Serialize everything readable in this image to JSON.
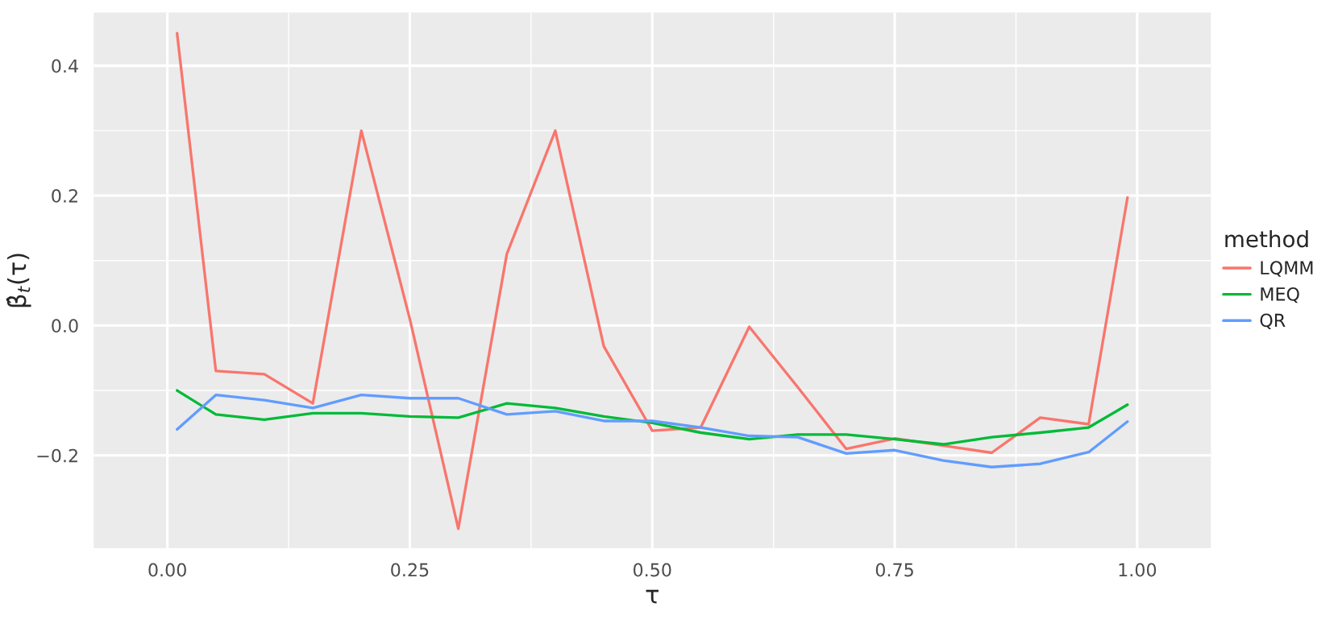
{
  "chart_data": {
    "type": "line",
    "xlabel": "τ",
    "ylabel": "β̂$_{t}$(τ)",
    "legend_title": "method",
    "legend": "right",
    "grid": true,
    "marker": "none",
    "line_style": "solid",
    "x": [
      0.01,
      0.05,
      0.1,
      0.15,
      0.2,
      0.25,
      0.3,
      0.35,
      0.4,
      0.45,
      0.5,
      0.55,
      0.6,
      0.65,
      0.7,
      0.75,
      0.8,
      0.85,
      0.9,
      0.95,
      0.99
    ],
    "xlim": [
      -0.076,
      1.076
    ],
    "ylim": [
      -0.343,
      0.482
    ],
    "xticks": [
      {
        "value": 0,
        "label": "0.00"
      },
      {
        "value": 0.25,
        "label": "0.25"
      },
      {
        "value": 0.5,
        "label": "0.50"
      },
      {
        "value": 0.75,
        "label": "0.75"
      },
      {
        "value": 1,
        "label": "1.00"
      }
    ],
    "yticks": [
      {
        "value": -0.2,
        "label": "−0.2"
      },
      {
        "value": 0,
        "label": "0.0"
      },
      {
        "value": 0.2,
        "label": "0.2"
      },
      {
        "value": 0.4,
        "label": "0.4"
      }
    ],
    "series": [
      {
        "name": "LQMM",
        "color": "#f8766d",
        "values": [
          0.45,
          -0.07,
          -0.075,
          -0.12,
          0.3,
          0.01,
          -0.313,
          0.11,
          0.3,
          -0.032,
          -0.162,
          -0.157,
          -0.002,
          -0.095,
          -0.19,
          -0.174,
          -0.185,
          -0.196,
          -0.142,
          -0.152,
          0.197
        ]
      },
      {
        "name": "MEQ",
        "color": "#00ba38",
        "values": [
          -0.1,
          -0.137,
          -0.145,
          -0.135,
          -0.135,
          -0.14,
          -0.142,
          -0.12,
          -0.127,
          -0.14,
          -0.15,
          -0.165,
          -0.175,
          -0.168,
          -0.168,
          -0.175,
          -0.183,
          -0.172,
          -0.165,
          -0.157,
          -0.122
        ]
      },
      {
        "name": "QR",
        "color": "#619cff",
        "values": [
          -0.16,
          -0.107,
          -0.115,
          -0.127,
          -0.107,
          -0.112,
          -0.112,
          -0.137,
          -0.132,
          -0.147,
          -0.147,
          -0.157,
          -0.17,
          -0.172,
          -0.197,
          -0.192,
          -0.208,
          -0.218,
          -0.213,
          -0.195,
          -0.148
        ]
      }
    ]
  }
}
